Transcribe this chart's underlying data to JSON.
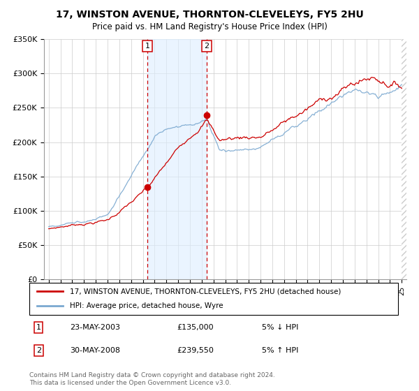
{
  "title": "17, WINSTON AVENUE, THORNTON-CLEVELEYS, FY5 2HU",
  "subtitle": "Price paid vs. HM Land Registry's House Price Index (HPI)",
  "legend_label1": "17, WINSTON AVENUE, THORNTON-CLEVELEYS, FY5 2HU (detached house)",
  "legend_label2": "HPI: Average price, detached house, Wyre",
  "sale1_date": "23-MAY-2003",
  "sale1_price": "£135,000",
  "sale1_hpi": "5% ↓ HPI",
  "sale2_date": "30-MAY-2008",
  "sale2_price": "£239,550",
  "sale2_hpi": "5% ↑ HPI",
  "footer": "Contains HM Land Registry data © Crown copyright and database right 2024.\nThis data is licensed under the Open Government Licence v3.0.",
  "color_red": "#cc0000",
  "color_blue": "#7aa8d0",
  "color_shading": "#ddeeff",
  "ylim": [
    0,
    350000
  ],
  "yticks": [
    0,
    50000,
    100000,
    150000,
    200000,
    250000,
    300000,
    350000
  ],
  "ytick_labels": [
    "£0",
    "£50K",
    "£100K",
    "£150K",
    "£200K",
    "£250K",
    "£300K",
    "£350K"
  ],
  "sale1_x": 2003.39,
  "sale1_y": 135000,
  "sale2_x": 2008.41,
  "sale2_y": 239550,
  "xmin": 1994.6,
  "xmax": 2025.4
}
